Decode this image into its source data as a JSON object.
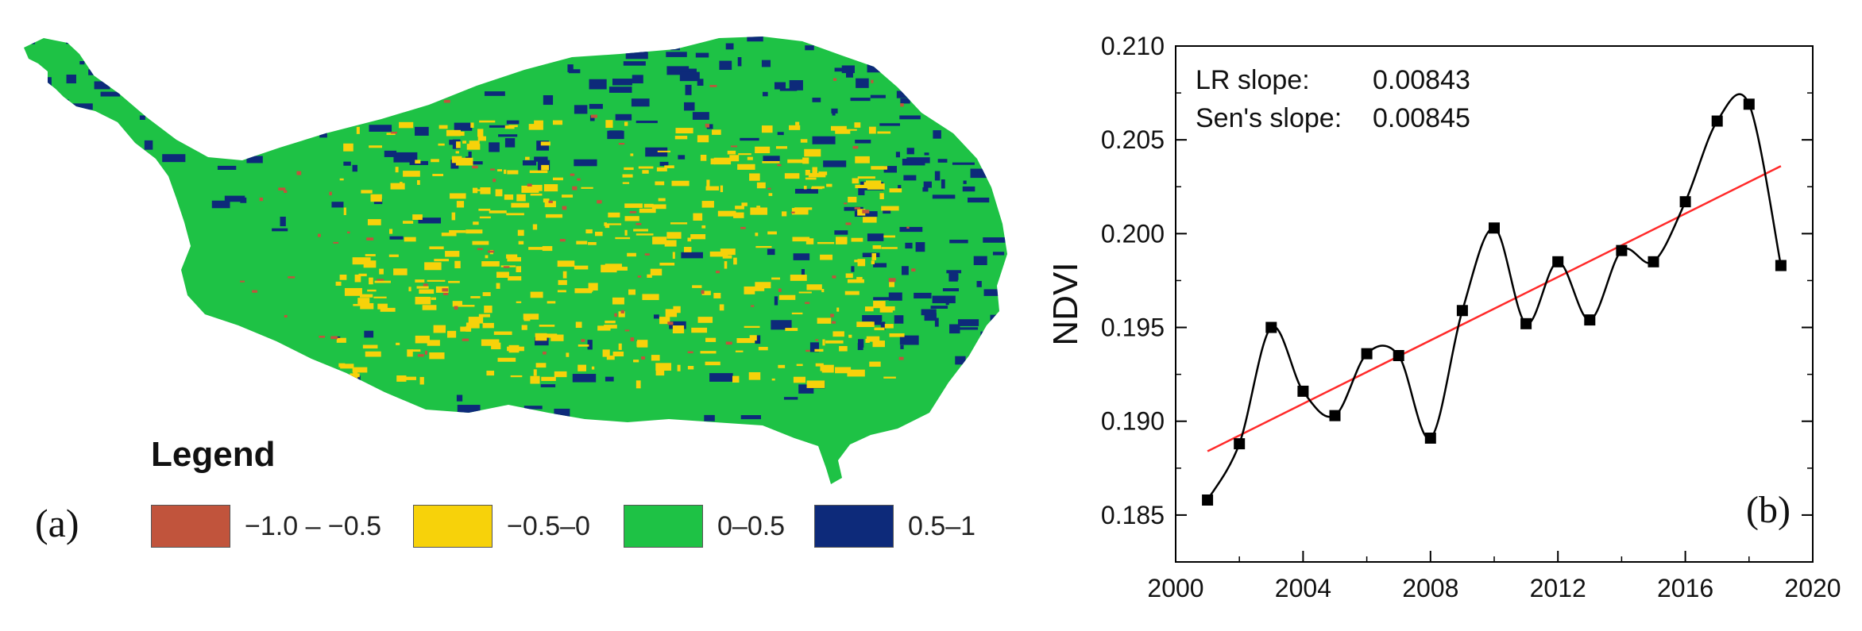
{
  "panel_a": {
    "label": "(a)",
    "legend_title": "Legend",
    "legend": [
      {
        "label": "−1.0 – −0.5",
        "color": "#c1543c"
      },
      {
        "label": "−0.5–0",
        "color": "#f7d20a"
      },
      {
        "label": "0–0.5",
        "color": "#1ec245"
      },
      {
        "label": "0.5–1",
        "color": "#0d2a7a"
      }
    ]
  },
  "chart_data": {
    "type": "line",
    "panel_label": "(b)",
    "ylabel": "NDVI",
    "xlabel": "",
    "xlim": [
      2000,
      2020
    ],
    "ylim": [
      0.1825,
      0.21
    ],
    "xticks": [
      "2000",
      "2004",
      "2008",
      "2012",
      "2016",
      "2020"
    ],
    "yticks": [
      "0.185",
      "0.190",
      "0.195",
      "0.200",
      "0.205",
      "0.210"
    ],
    "annotation_lines": [
      {
        "label": "LR slope:",
        "value": "0.00843"
      },
      {
        "label": "Sen's slope:",
        "value": "0.00845"
      }
    ],
    "series": [
      {
        "color": "#000000",
        "x": [
          2001,
          2002,
          2003,
          2004,
          2005,
          2006,
          2007,
          2008,
          2009,
          2010,
          2011,
          2012,
          2013,
          2014,
          2015,
          2016,
          2017,
          2018,
          2019
        ],
        "values": [
          0.1858,
          0.1888,
          0.195,
          0.1916,
          0.1903,
          0.1936,
          0.1935,
          0.1891,
          0.1959,
          0.2003,
          0.1952,
          0.1985,
          0.1954,
          0.1991,
          0.1985,
          0.2017,
          0.206,
          0.2069,
          0.1983
        ]
      }
    ],
    "trend": {
      "color": "#ff2a2a",
      "x": [
        2001,
        2019
      ],
      "values": [
        0.1884,
        0.2036
      ]
    }
  }
}
